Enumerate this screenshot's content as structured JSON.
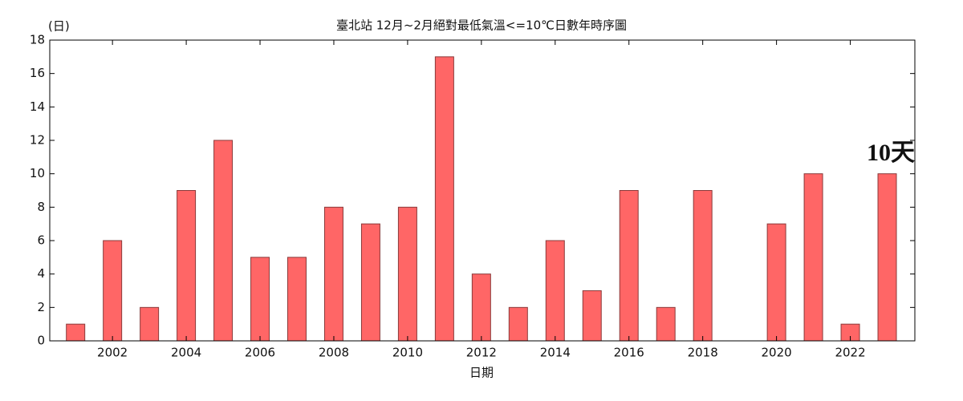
{
  "chart_data": {
    "type": "bar",
    "title": "臺北站 12月~2月絕對最低氣溫<=10℃日數年時序圖",
    "y_label": "(日)",
    "x_label": "日期",
    "annotation": "10天",
    "x": [
      2001,
      2002,
      2003,
      2004,
      2005,
      2006,
      2007,
      2008,
      2009,
      2010,
      2011,
      2012,
      2013,
      2014,
      2015,
      2016,
      2017,
      2018,
      2019,
      2020,
      2021,
      2022,
      2023
    ],
    "values": [
      1,
      6,
      2,
      9,
      12,
      5,
      5,
      8,
      7,
      8,
      17,
      4,
      2,
      6,
      3,
      9,
      2,
      9,
      0,
      7,
      10,
      1,
      10
    ],
    "color": "#ff6666",
    "edge_color": "#8a3a3a",
    "xlim": [
      2000.3,
      2023.75
    ],
    "xticks": [
      2002,
      2004,
      2006,
      2008,
      2010,
      2012,
      2014,
      2016,
      2018,
      2020,
      2022
    ],
    "ylim": [
      0,
      18
    ],
    "yticks": [
      0,
      2,
      4,
      6,
      8,
      10,
      12,
      14,
      16,
      18
    ]
  }
}
